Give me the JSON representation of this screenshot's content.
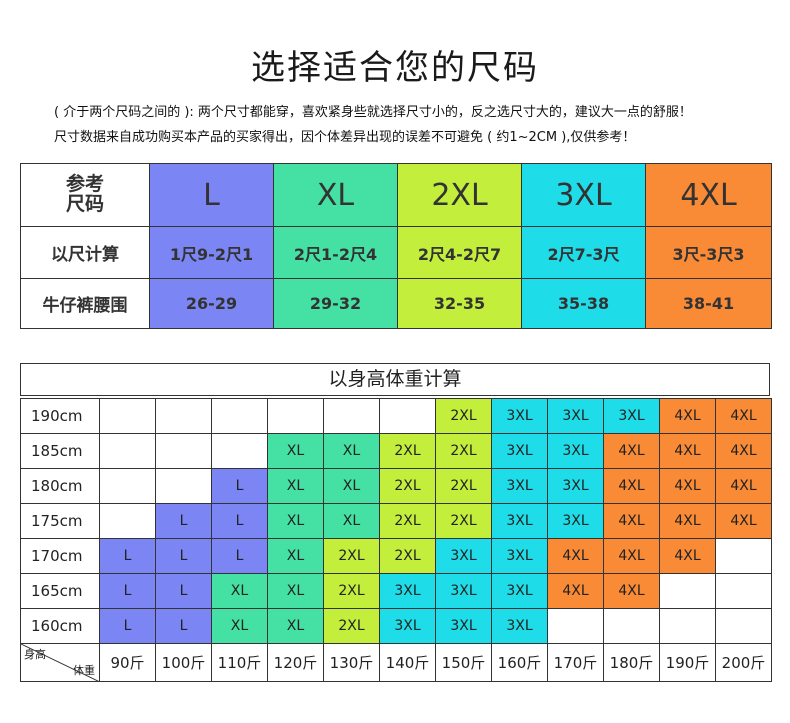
{
  "title": "选择适合您的尺码",
  "notes": [
    "( 介于两个尺码之间的 ): 两个尺寸都能穿，喜欢紧身些就选择尺寸小的，反之选尺寸大的，建议大一点的舒服！",
    "尺寸数据来自成功购买本产品的买家得出，因个体差异出现的误差不可避免 ( 约1~2CM ),仅供参考！"
  ],
  "size_table": {
    "header": "参考\n尺码",
    "row_labels": [
      "以尺计算",
      "牛仔裤腰围"
    ],
    "sizes": [
      {
        "name": "L",
        "chi": "1尺9-2尺1",
        "waist": "26-29",
        "color": "#7b86f4"
      },
      {
        "name": "XL",
        "chi": "2尺1-2尺4",
        "waist": "29-32",
        "color": "#45e0a4"
      },
      {
        "name": "2XL",
        "chi": "2尺4-2尺7",
        "waist": "32-35",
        "color": "#c3ef3c"
      },
      {
        "name": "3XL",
        "chi": "2尺7-3尺",
        "waist": "35-38",
        "color": "#1fdde8"
      },
      {
        "name": "4XL",
        "chi": "3尺-3尺3",
        "waist": "38-41",
        "color": "#f98a36"
      }
    ]
  },
  "grid": {
    "title": "以身高体重计算",
    "corner_height": "身高",
    "corner_weight": "体重",
    "weights": [
      "90斤",
      "100斤",
      "110斤",
      "120斤",
      "130斤",
      "140斤",
      "150斤",
      "160斤",
      "170斤",
      "180斤",
      "190斤",
      "200斤"
    ],
    "rows": [
      {
        "height": "190cm",
        "cells": [
          "",
          "",
          "",
          "",
          "",
          "",
          "2XL",
          "3XL",
          "3XL",
          "3XL",
          "4XL",
          "4XL"
        ]
      },
      {
        "height": "185cm",
        "cells": [
          "",
          "",
          "",
          "XL",
          "XL",
          "2XL",
          "2XL",
          "3XL",
          "3XL",
          "4XL",
          "4XL",
          "4XL"
        ]
      },
      {
        "height": "180cm",
        "cells": [
          "",
          "",
          "L",
          "XL",
          "XL",
          "2XL",
          "2XL",
          "3XL",
          "3XL",
          "4XL",
          "4XL",
          "4XL"
        ]
      },
      {
        "height": "175cm",
        "cells": [
          "",
          "L",
          "L",
          "XL",
          "XL",
          "2XL",
          "2XL",
          "3XL",
          "3XL",
          "4XL",
          "4XL",
          "4XL"
        ]
      },
      {
        "height": "170cm",
        "cells": [
          "L",
          "L",
          "L",
          "XL",
          "2XL",
          "2XL",
          "3XL",
          "3XL",
          "4XL",
          "4XL",
          "4XL",
          ""
        ]
      },
      {
        "height": "165cm",
        "cells": [
          "L",
          "L",
          "XL",
          "XL",
          "2XL",
          "3XL",
          "3XL",
          "3XL",
          "4XL",
          "4XL",
          "",
          ""
        ]
      },
      {
        "height": "160cm",
        "cells": [
          "L",
          "L",
          "XL",
          "XL",
          "2XL",
          "3XL",
          "3XL",
          "3XL",
          "",
          "",
          "",
          ""
        ]
      }
    ]
  },
  "colors": {
    "L": "#7b86f4",
    "XL": "#45e0a4",
    "2XL": "#c3ef3c",
    "3XL": "#1fdde8",
    "4XL": "#f98a36",
    "empty": "#ffffff"
  }
}
